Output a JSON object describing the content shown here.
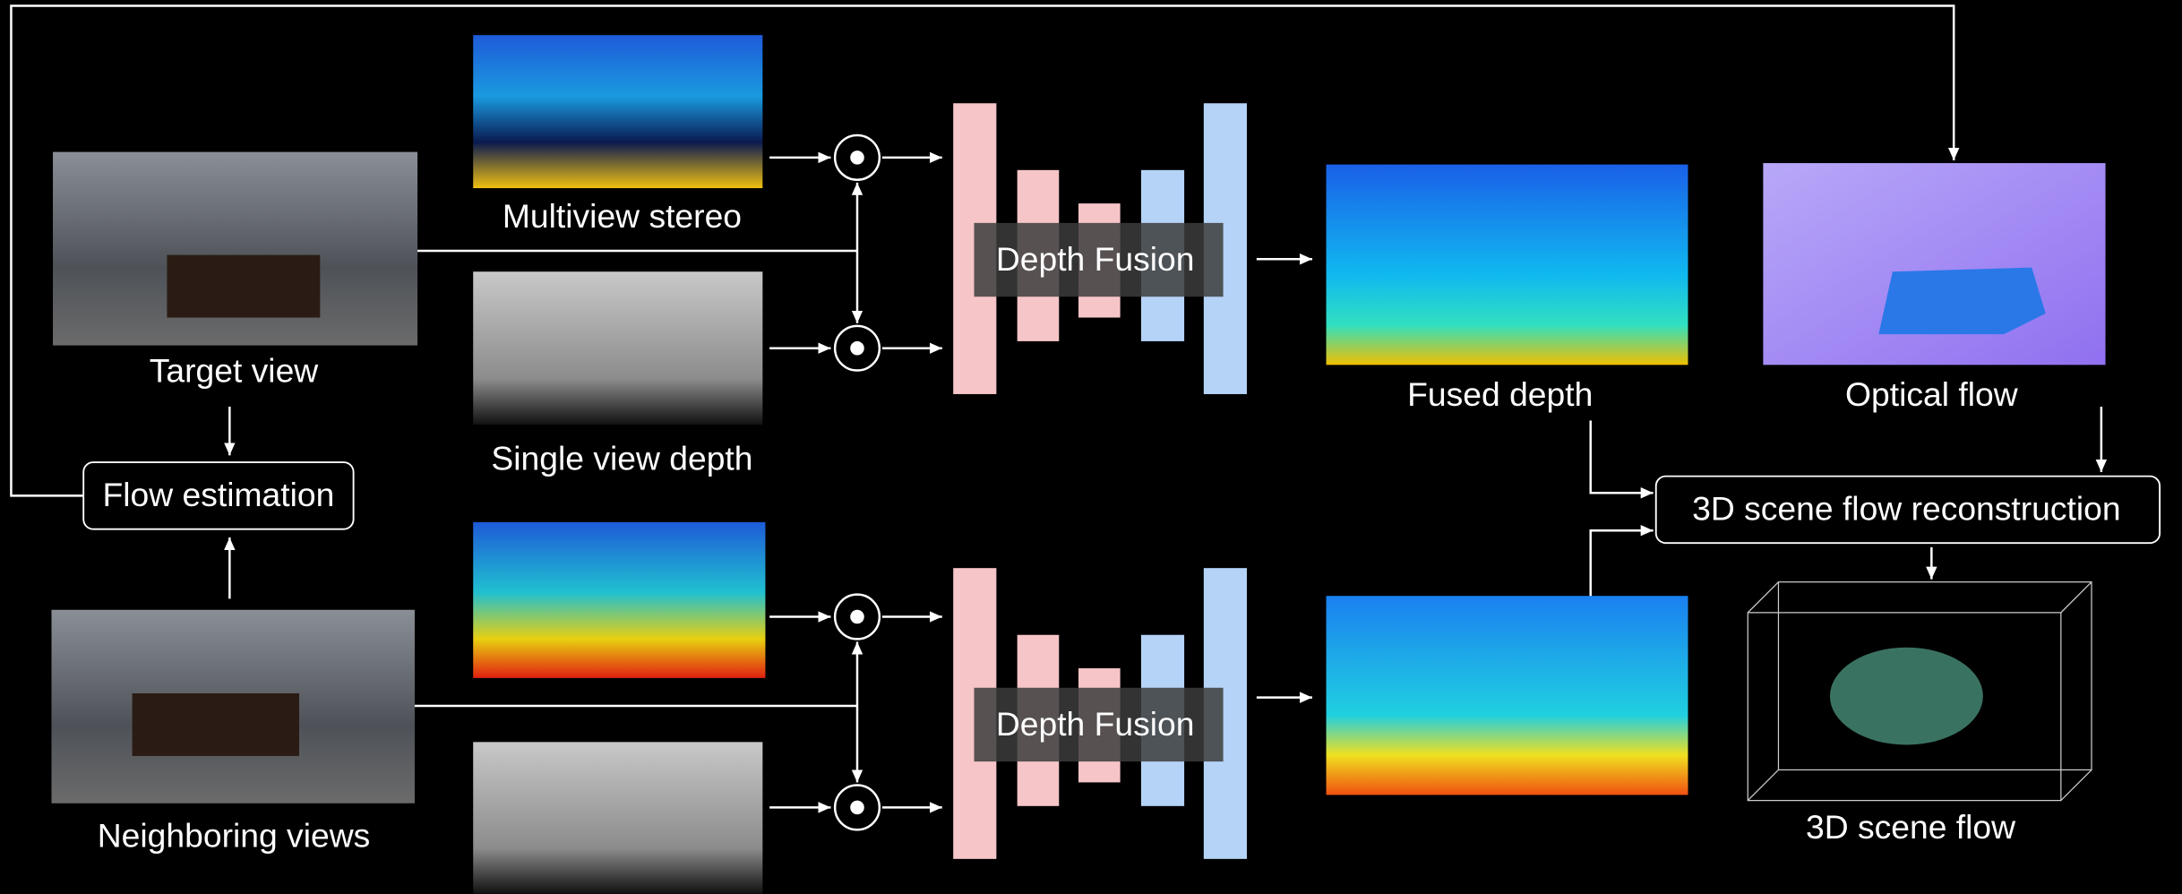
{
  "inputs": {
    "target_view": "Target view",
    "neighboring_views": "Neighboring views"
  },
  "depth_sources": {
    "multiview_stereo": "Multiview stereo",
    "single_view_depth": "Single view depth"
  },
  "modules": {
    "flow_estimation": "Flow estimation",
    "reconstruction": "3D scene flow reconstruction"
  },
  "fusion_blocks": [
    {
      "label": "Depth Fusion"
    },
    {
      "label": "Depth Fusion"
    }
  ],
  "outputs": {
    "fused_depth": "Fused depth",
    "optical_flow": "Optical flow",
    "scene_flow": "3D scene flow"
  }
}
